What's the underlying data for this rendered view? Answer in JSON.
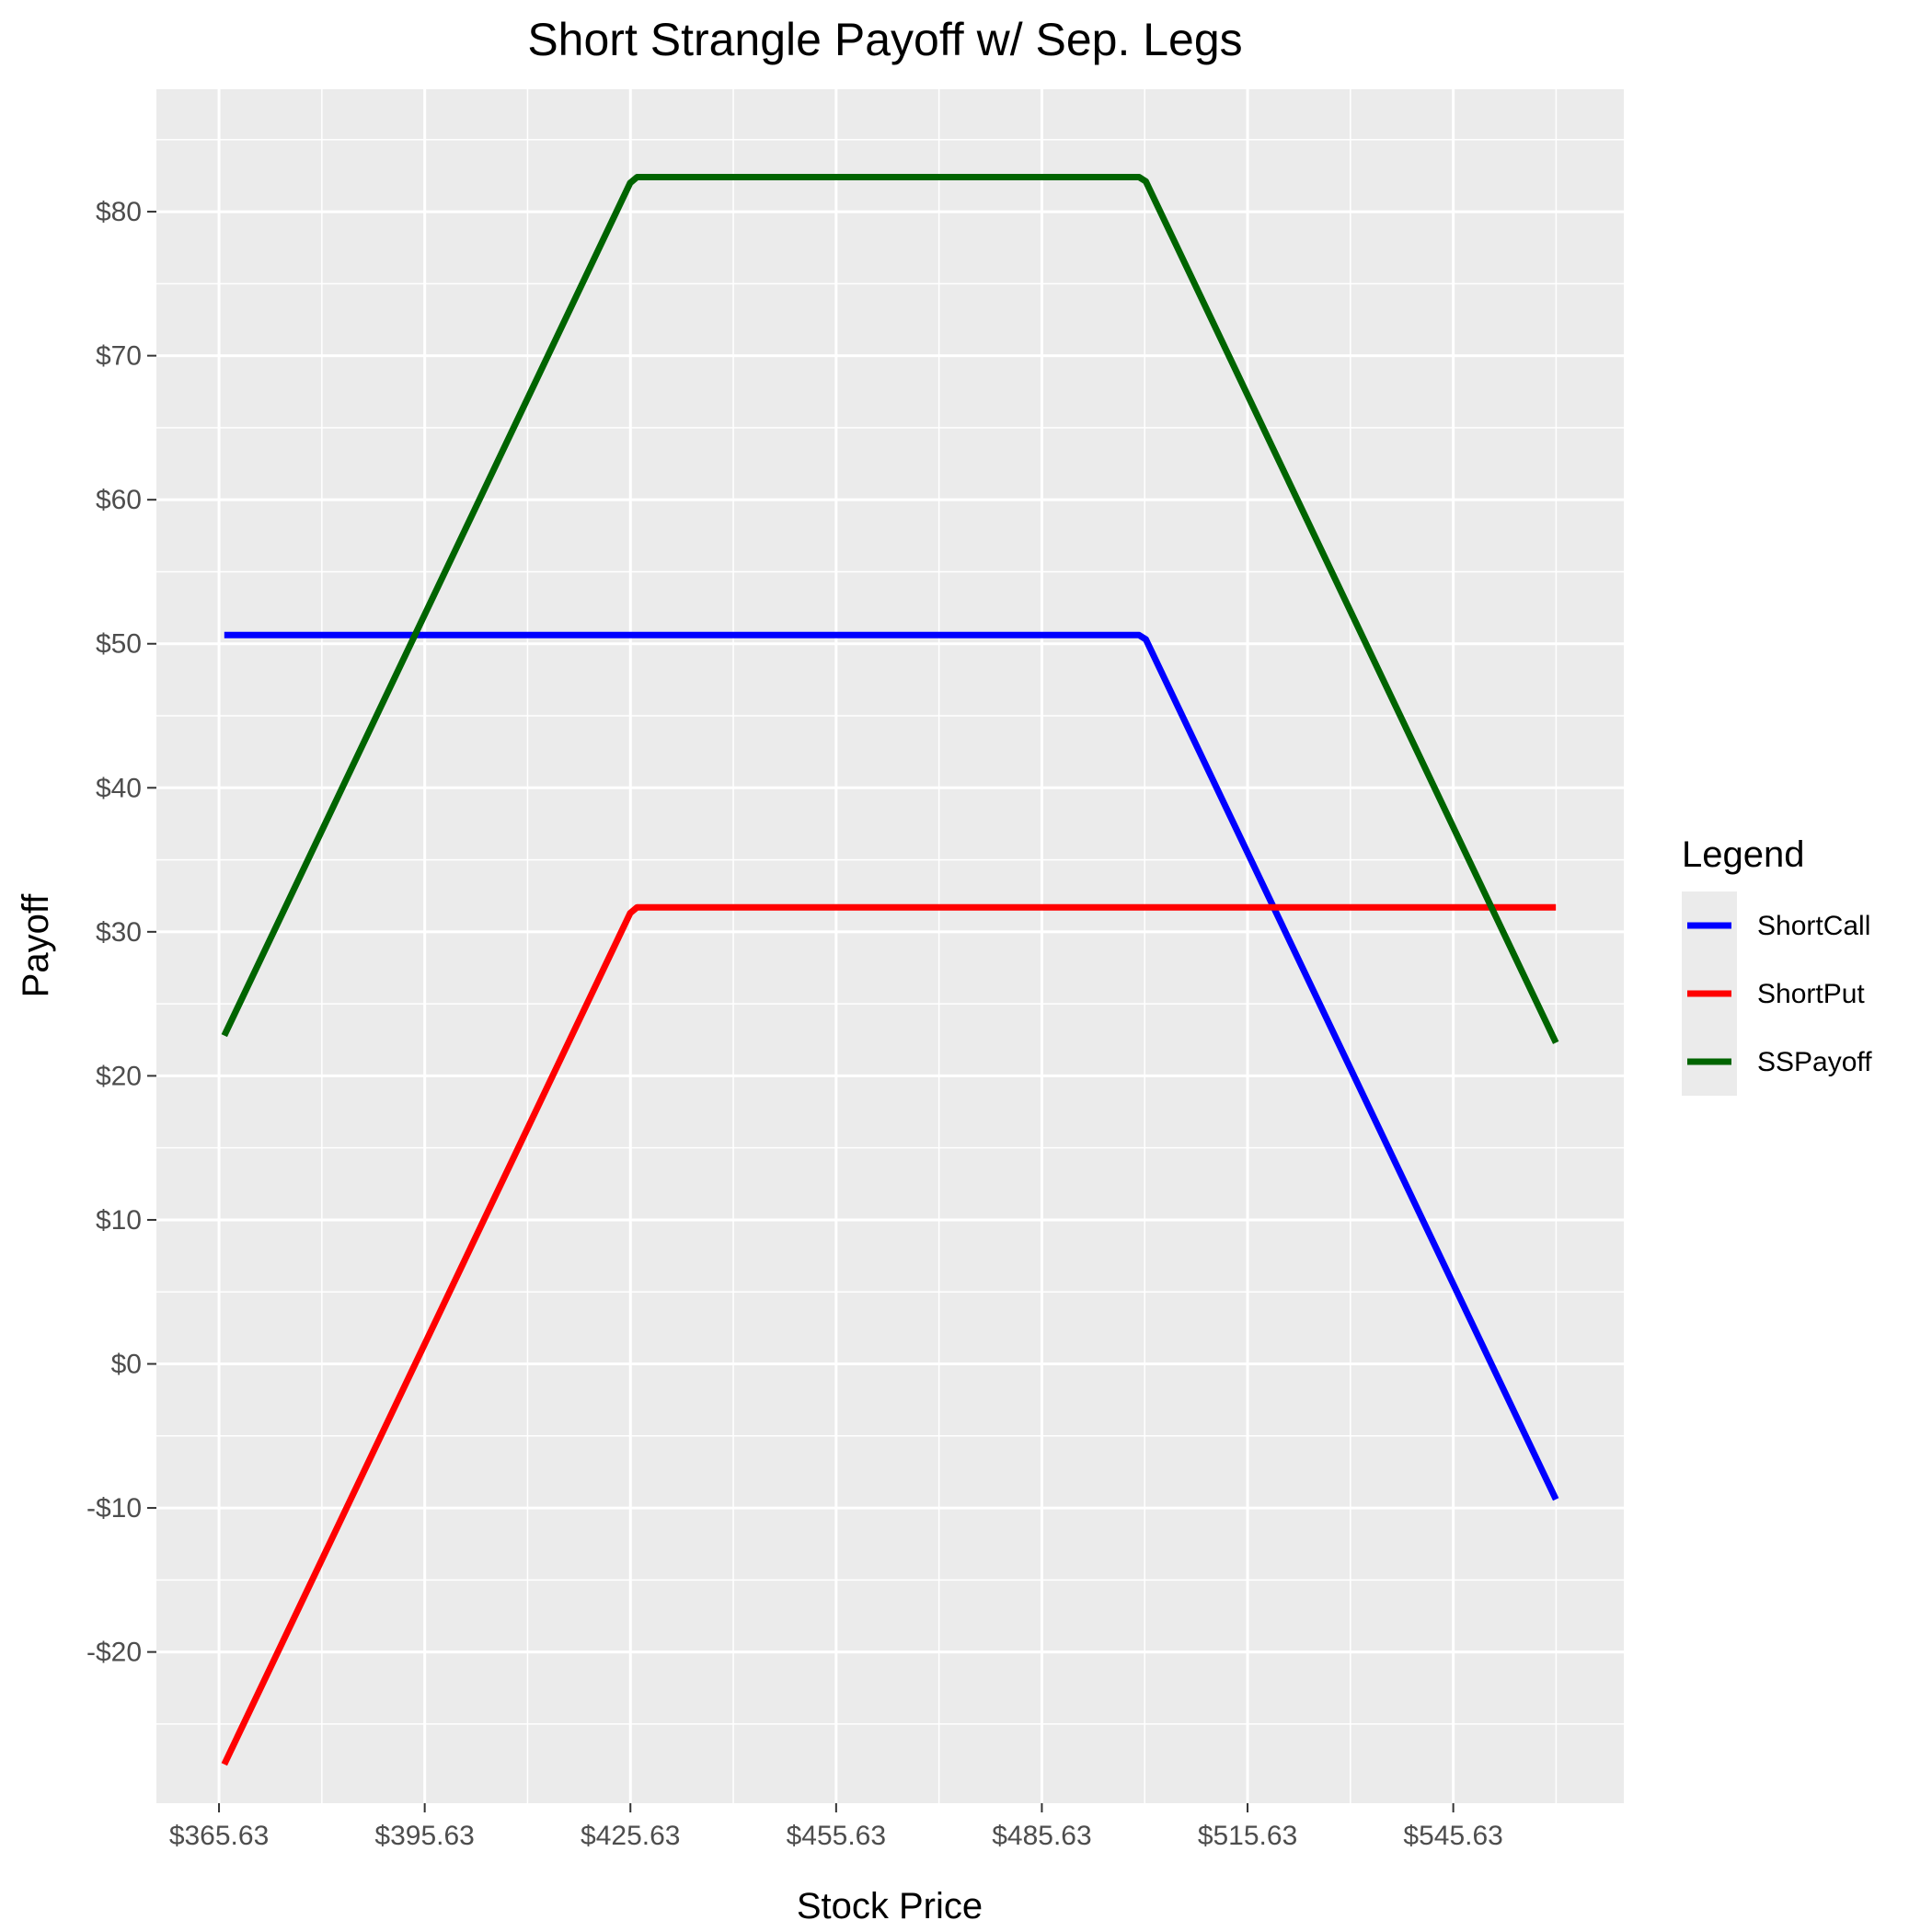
{
  "chart_data": {
    "type": "line",
    "title": "Short Strangle Payoff w/ Sep. Legs",
    "xlabel": "Stock Price",
    "ylabel": "Payoff",
    "xlim": [
      356.5,
      570.5
    ],
    "ylim": [
      -30.5,
      88.5
    ],
    "x_ticks": [
      365.63,
      395.63,
      425.63,
      455.63,
      485.63,
      515.63,
      545.63
    ],
    "x_tick_labels": [
      "$365.63",
      "$395.63",
      "$425.63",
      "$455.63",
      "$485.63",
      "$515.63",
      "$545.63"
    ],
    "y_ticks": [
      -20,
      -10,
      0,
      10,
      20,
      30,
      40,
      50,
      60,
      70,
      80
    ],
    "y_tick_labels": [
      "-$20",
      "-$10",
      "$0",
      "$10",
      "$20",
      "$30",
      "$40",
      "$50",
      "$60",
      "$70",
      "$80"
    ],
    "grid": true,
    "legend": {
      "title": "Legend",
      "position": "right",
      "entries": [
        "ShortCall",
        "ShortPut",
        "SSPayoff"
      ]
    },
    "series": [
      {
        "name": "ShortCall",
        "color": "#0000ff",
        "x": [
          366.4,
          499.8,
          500.8,
          560.6
        ],
        "y": [
          50.6,
          50.6,
          50.3,
          -9.4
        ]
      },
      {
        "name": "ShortPut",
        "color": "#ff0000",
        "x": [
          366.4,
          425.6,
          426.6,
          560.6
        ],
        "y": [
          -27.8,
          31.3,
          31.7,
          31.7
        ]
      },
      {
        "name": "SSPayoff",
        "color": "#006400",
        "x": [
          366.4,
          425.6,
          426.6,
          499.8,
          500.8,
          560.6
        ],
        "y": [
          22.8,
          82.0,
          82.4,
          82.4,
          82.1,
          22.3
        ]
      }
    ]
  }
}
